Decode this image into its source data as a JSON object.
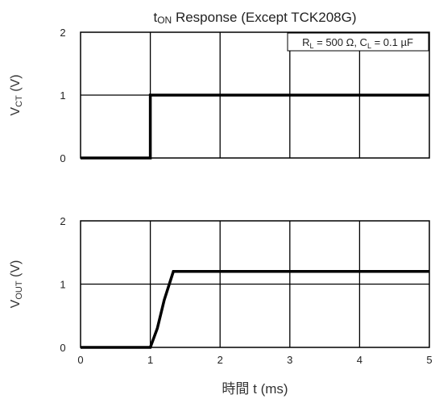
{
  "chart_data": {
    "type": "line",
    "title": {
      "prefix": "t",
      "subscript": "ON",
      "rest": " Response (Except TCK208G)"
    },
    "annotation": {
      "parts": [
        {
          "text": "R"
        },
        {
          "text": "L",
          "sub": true
        },
        {
          "text": " = 500 Ω, C"
        },
        {
          "text": "L",
          "sub": true
        },
        {
          "text": " = 0.1 µF"
        }
      ]
    },
    "x": {
      "label": "時間 t (ms)",
      "range": [
        0,
        5
      ],
      "ticks": [
        "0",
        "1",
        "2",
        "3",
        "4",
        "5"
      ]
    },
    "panels": [
      {
        "name": "vct",
        "ylabel": {
          "main": "V",
          "sub": "CT",
          "unit": " (V)"
        },
        "yrange": [
          0,
          2
        ],
        "yticks": [
          "0",
          "1",
          "2"
        ],
        "series": [
          {
            "x": [
              0,
              1.0,
              1.0,
              5
            ],
            "y": [
              0,
              0,
              1.0,
              1.0
            ]
          }
        ]
      },
      {
        "name": "vout",
        "ylabel": {
          "main": "V",
          "sub": "OUT",
          "unit": " (V)"
        },
        "yrange": [
          0,
          2
        ],
        "yticks": [
          "0",
          "1",
          "2"
        ],
        "series": [
          {
            "x": [
              0,
              1.0,
              1.1,
              1.2,
              1.33,
              5
            ],
            "y": [
              0,
              0,
              0.3,
              0.75,
              1.2,
              1.2
            ]
          }
        ]
      }
    ],
    "grid": true,
    "colors": {
      "line": "#000000",
      "grid": "#000000",
      "text": "#222222"
    }
  }
}
